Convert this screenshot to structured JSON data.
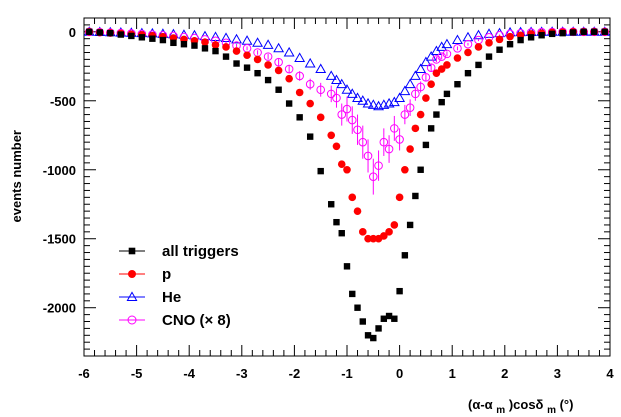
{
  "chart_data": {
    "type": "scatter",
    "ylabel": "events number",
    "xlabel_parts": {
      "p1": "(α-α",
      "sub1": "m",
      "p2": ")cosδ",
      "sub2": "m",
      "p3": "  (°)"
    },
    "xlim": [
      -6,
      4
    ],
    "ylim": [
      -2350,
      100
    ],
    "xticks": [
      "-6",
      "-5",
      "-4",
      "-3",
      "-2",
      "-1",
      "0",
      "1",
      "2",
      "3",
      "4"
    ],
    "yticks": [
      "-2000",
      "-1500",
      "-1000",
      "-500",
      "0"
    ],
    "legend_position": "bottom-left",
    "series": [
      {
        "name": "all triggers",
        "marker": "filled-square",
        "color": "#000000",
        "x": [
          -5.9,
          -5.7,
          -5.5,
          -5.3,
          -5.1,
          -4.9,
          -4.7,
          -4.5,
          -4.3,
          -4.1,
          -3.9,
          -3.7,
          -3.5,
          -3.3,
          -3.1,
          -2.9,
          -2.7,
          -2.5,
          -2.3,
          -2.1,
          -1.9,
          -1.7,
          -1.5,
          -1.3,
          -1.2,
          -1.1,
          -1.0,
          -0.9,
          -0.8,
          -0.7,
          -0.6,
          -0.5,
          -0.4,
          -0.3,
          -0.2,
          -0.1,
          0.0,
          0.1,
          0.2,
          0.3,
          0.4,
          0.5,
          0.6,
          0.7,
          0.8,
          0.9,
          1.1,
          1.3,
          1.5,
          1.7,
          1.9,
          2.1,
          2.3,
          2.5,
          2.7,
          2.9,
          3.1,
          3.3,
          3.5,
          3.7,
          3.9
        ],
        "y": [
          0,
          -5,
          -10,
          -20,
          -30,
          -40,
          -50,
          -60,
          -80,
          -90,
          -100,
          -120,
          -140,
          -180,
          -230,
          -260,
          -300,
          -350,
          -420,
          -520,
          -620,
          -760,
          -1010,
          -1250,
          -1380,
          -1460,
          -1700,
          -1900,
          -2000,
          -2100,
          -2200,
          -2220,
          -2150,
          -2080,
          -2060,
          -2080,
          -1880,
          -1620,
          -1400,
          -1190,
          -1000,
          -820,
          -700,
          -600,
          -510,
          -450,
          -380,
          -300,
          -240,
          -180,
          -130,
          -90,
          -60,
          -40,
          -25,
          -15,
          -10,
          -5,
          0,
          0,
          0
        ]
      },
      {
        "name": "p",
        "marker": "filled-circle",
        "color": "#ff0000",
        "x": [
          -5.9,
          -5.7,
          -5.5,
          -5.3,
          -5.1,
          -4.9,
          -4.7,
          -4.5,
          -4.3,
          -4.1,
          -3.9,
          -3.7,
          -3.5,
          -3.3,
          -3.1,
          -2.9,
          -2.7,
          -2.5,
          -2.3,
          -2.1,
          -1.9,
          -1.7,
          -1.5,
          -1.3,
          -1.2,
          -1.1,
          -1.0,
          -0.9,
          -0.8,
          -0.7,
          -0.6,
          -0.5,
          -0.4,
          -0.3,
          -0.2,
          -0.1,
          0.0,
          0.1,
          0.2,
          0.3,
          0.4,
          0.5,
          0.6,
          0.7,
          0.8,
          0.9,
          1.1,
          1.3,
          1.5,
          1.7,
          1.9,
          2.1,
          2.3,
          2.5,
          2.7,
          2.9,
          3.1,
          3.3,
          3.5,
          3.7,
          3.9
        ],
        "y": [
          0,
          -5,
          -8,
          -12,
          -18,
          -22,
          -28,
          -35,
          -45,
          -55,
          -65,
          -75,
          -95,
          -110,
          -140,
          -170,
          -200,
          -240,
          -280,
          -340,
          -440,
          -520,
          -620,
          -750,
          -830,
          -960,
          -1000,
          -1200,
          -1300,
          -1450,
          -1500,
          -1500,
          -1500,
          -1480,
          -1450,
          -1400,
          -1200,
          -1000,
          -850,
          -700,
          -600,
          -480,
          -380,
          -300,
          -270,
          -240,
          -190,
          -150,
          -110,
          -80,
          -55,
          -35,
          -25,
          -15,
          -10,
          -5,
          -3,
          0,
          0,
          0,
          0
        ]
      },
      {
        "name": "He",
        "marker": "open-triangle",
        "color": "#0000ff",
        "x": [
          -5.9,
          -5.7,
          -5.5,
          -5.3,
          -5.1,
          -4.9,
          -4.7,
          -4.5,
          -4.3,
          -4.1,
          -3.9,
          -3.7,
          -3.5,
          -3.3,
          -3.1,
          -2.9,
          -2.7,
          -2.5,
          -2.3,
          -2.1,
          -1.9,
          -1.7,
          -1.5,
          -1.3,
          -1.2,
          -1.1,
          -1.0,
          -0.9,
          -0.8,
          -0.7,
          -0.6,
          -0.5,
          -0.4,
          -0.3,
          -0.2,
          -0.1,
          0.0,
          0.1,
          0.2,
          0.3,
          0.4,
          0.5,
          0.6,
          0.7,
          0.8,
          0.9,
          1.1,
          1.3,
          1.5,
          1.7,
          1.9,
          2.1,
          2.3,
          2.5,
          2.7,
          2.9,
          3.1,
          3.3,
          3.5,
          3.7,
          3.9
        ],
        "y": [
          0,
          -2,
          -4,
          -6,
          -8,
          -10,
          -12,
          -15,
          -18,
          -22,
          -26,
          -32,
          -38,
          -45,
          -55,
          -65,
          -80,
          -95,
          -120,
          -150,
          -190,
          -230,
          -270,
          -320,
          -350,
          -380,
          -420,
          -450,
          -480,
          -500,
          -520,
          -530,
          -540,
          -530,
          -520,
          -510,
          -480,
          -430,
          -380,
          -320,
          -270,
          -220,
          -180,
          -140,
          -110,
          -90,
          -60,
          -40,
          -25,
          -15,
          -10,
          -5,
          -3,
          -2,
          -1,
          0,
          0,
          0,
          0,
          0,
          0
        ]
      },
      {
        "name": "CNO (× 8)",
        "marker": "open-circle",
        "color": "#ff00ff",
        "x": [
          -5.9,
          -5.7,
          -5.5,
          -5.3,
          -5.1,
          -4.9,
          -4.7,
          -4.5,
          -4.3,
          -4.1,
          -3.9,
          -3.7,
          -3.5,
          -3.3,
          -3.1,
          -2.9,
          -2.7,
          -2.5,
          -2.3,
          -2.1,
          -1.9,
          -1.7,
          -1.5,
          -1.3,
          -1.2,
          -1.1,
          -1.0,
          -0.9,
          -0.8,
          -0.7,
          -0.6,
          -0.5,
          -0.4,
          -0.3,
          -0.2,
          -0.1,
          0.0,
          0.1,
          0.2,
          0.3,
          0.4,
          0.5,
          0.6,
          0.7,
          0.8,
          0.9,
          1.1,
          1.3,
          1.5,
          1.7,
          1.9,
          2.1,
          2.3,
          2.5,
          2.7,
          2.9,
          3.1,
          3.3,
          3.5,
          3.7,
          3.9
        ],
        "y": [
          0,
          -3,
          -6,
          -9,
          -12,
          -15,
          -20,
          -25,
          -30,
          -38,
          -45,
          -55,
          -65,
          -80,
          -100,
          -120,
          -150,
          -180,
          -220,
          -270,
          -320,
          -380,
          -420,
          -450,
          -480,
          -600,
          -560,
          -640,
          -710,
          -800,
          -900,
          -1050,
          -970,
          -800,
          -850,
          -700,
          -780,
          -600,
          -550,
          -450,
          -400,
          -330,
          -260,
          -200,
          -180,
          -160,
          -120,
          -90,
          -60,
          -40,
          -25,
          -15,
          -10,
          -5,
          -3,
          -2,
          0,
          0,
          0,
          0,
          0
        ],
        "err": [
          5,
          5,
          5,
          5,
          5,
          5,
          5,
          6,
          6,
          7,
          7,
          8,
          9,
          10,
          12,
          14,
          16,
          20,
          25,
          30,
          35,
          40,
          50,
          60,
          70,
          80,
          90,
          100,
          110,
          120,
          120,
          130,
          110,
          100,
          100,
          90,
          80,
          70,
          60,
          50,
          40,
          30,
          25,
          20,
          20,
          18,
          14,
          10,
          8,
          6,
          5,
          5,
          5,
          5,
          5,
          5,
          5,
          5,
          5,
          5,
          5
        ]
      }
    ]
  }
}
